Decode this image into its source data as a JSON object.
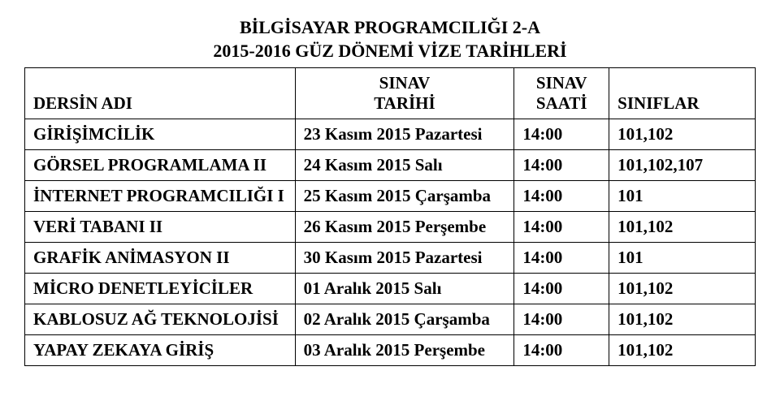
{
  "title_line1": "BİLGİSAYAR PROGRAMCILIĞI 2-A",
  "title_line2": "2015-2016 GÜZ DÖNEMİ VİZE TARİHLERİ",
  "headers": {
    "name": "DERSİN ADI",
    "date_top": "SINAV",
    "date_bottom": "TARİHİ",
    "time_top": "SINAV",
    "time_bottom": "SAATİ",
    "room": "SINIFLAR"
  },
  "rows": [
    {
      "name": "GİRİŞİMCİLİK",
      "date": "23 Kasım 2015 Pazartesi",
      "time": "14:00",
      "room": "101,102"
    },
    {
      "name": "GÖRSEL PROGRAMLAMA II",
      "date": "24 Kasım 2015 Salı",
      "time": "14:00",
      "room": "101,102,107"
    },
    {
      "name": "İNTERNET PROGRAMCILIĞI I",
      "date": "25 Kasım 2015 Çarşamba",
      "time": "14:00",
      "room": "101"
    },
    {
      "name": "VERİ TABANI II",
      "date": "26 Kasım 2015 Perşembe",
      "time": "14:00",
      "room": "101,102"
    },
    {
      "name": "GRAFİK ANİMASYON II",
      "date": "30 Kasım 2015 Pazartesi",
      "time": "14:00",
      "room": "101"
    },
    {
      "name": "MİCRO DENETLEYİCİLER",
      "date": "01 Aralık 2015 Salı",
      "time": "14:00",
      "room": "101,102"
    },
    {
      "name": "KABLOSUZ AĞ TEKNOLOJİSİ",
      "date": "02 Aralık 2015 Çarşamba",
      "time": "14:00",
      "room": "101,102"
    },
    {
      "name": "YAPAY ZEKAYA GİRİŞ",
      "date": "03 Aralık 2015 Perşembe",
      "time": "14:00",
      "room": "101,102"
    }
  ],
  "style": {
    "font_family": "Times New Roman",
    "title_fontsize": 22,
    "cell_fontsize": 21,
    "border_color": "#000000",
    "background": "#ffffff",
    "text_color": "#000000",
    "col_widths_pct": [
      37,
      30,
      13,
      20
    ]
  }
}
